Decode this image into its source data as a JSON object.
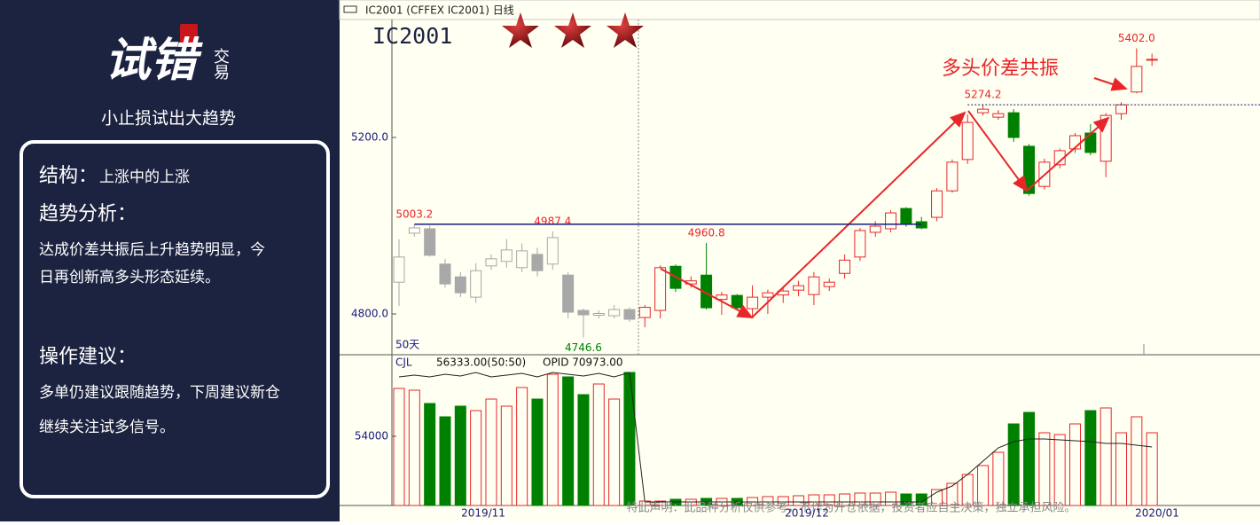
{
  "brand": {
    "name": "试错",
    "sub": "交易",
    "slogan": "小止损试出大趋势"
  },
  "panel": {
    "structure_label": "结构：",
    "structure": "上涨中的上涨",
    "analysis_label": "趋势分析：",
    "analysis": [
      "达成价差共振后上升趋势明显，今",
      "日再创新高多头形态延续。"
    ],
    "advice_label": "操作建议：",
    "advice": [
      "多单仍建议跟随趋势，下周建议新仓",
      "继续关注试多信号。"
    ]
  },
  "chart_data": {
    "type": "candlestick",
    "header": "IC2001  (CFFEX IC2001)  日线",
    "title": "IC2001",
    "period_label": "50天",
    "annotation": "多头价差共振",
    "disclaimer": "特此声明：此品种分析仅供参考，不作为开仓依据，投资者应自主决策，独立承担风险。",
    "ylim": [
      4711.6,
      5467.3
    ],
    "yticks": [
      {
        "value": 5200,
        "label": "5200.0"
      },
      {
        "value": 4800,
        "label": "4800.0"
      }
    ],
    "up_color": "#e8262a",
    "down_color": "#008000",
    "faded_color": "#a8a8a8",
    "line_color": "#1a1a80",
    "past": {
      "ohlc": [
        [
          4872,
          4969,
          4818,
          4929
        ],
        [
          4983,
          5003.2,
          4975,
          4995
        ],
        [
          4993,
          5000,
          4930,
          4933
        ],
        [
          4913,
          4925,
          4860,
          4868
        ],
        [
          4884,
          4895,
          4838,
          4848
        ],
        [
          4838,
          4915,
          4825,
          4898
        ],
        [
          4909,
          4935,
          4900,
          4925
        ],
        [
          4919,
          4970,
          4905,
          4945
        ],
        [
          4905,
          4960,
          4895,
          4943
        ],
        [
          4935,
          4950,
          4885,
          4898
        ],
        [
          4913,
          4987.4,
          4900,
          4973
        ],
        [
          4888,
          4895,
          4790,
          4804
        ],
        [
          4808,
          4812,
          4746.6,
          4798
        ],
        [
          4797,
          4808,
          4790,
          4801
        ],
        [
          4796,
          4820,
          4790,
          4810
        ],
        [
          4810,
          4815,
          4782,
          4788
        ]
      ],
      "volume": [
        59400,
        59200,
        57700,
        56200,
        57400,
        56900,
        58200,
        57400,
        59500,
        58200,
        61000,
        60700,
        58700,
        59900,
        58200,
        61200
      ],
      "volume_ma": [
        60700,
        60900,
        60700,
        61000,
        60800,
        61200,
        60700,
        60900,
        61100,
        60700,
        61200,
        61000,
        60800,
        61100,
        60700,
        61200
      ]
    },
    "recent": {
      "ohlc": [
        [
          4792,
          4820,
          4770,
          4815
        ],
        [
          4808,
          4910,
          4790,
          4905
        ],
        [
          4908,
          4912,
          4850,
          4858
        ],
        [
          4868,
          4885,
          4860,
          4875
        ],
        [
          4888,
          4960.8,
          4810,
          4814
        ],
        [
          4833,
          4850,
          4798,
          4843
        ],
        [
          4842,
          4845,
          4810,
          4814
        ],
        [
          4812,
          4865,
          4790,
          4838
        ],
        [
          4838,
          4855,
          4800,
          4848
        ],
        [
          4843,
          4858,
          4825,
          4852
        ],
        [
          4854,
          4875,
          4840,
          4864
        ],
        [
          4844,
          4895,
          4820,
          4884
        ],
        [
          4862,
          4880,
          4852,
          4872
        ],
        [
          4892,
          4935,
          4880,
          4922
        ],
        [
          4929,
          4995,
          4920,
          4989
        ],
        [
          4985,
          5010,
          4975,
          4999
        ],
        [
          4993,
          5035,
          4985,
          5029
        ],
        [
          5039,
          5042,
          4998,
          5005
        ],
        [
          5009,
          5020,
          4992,
          4995
        ],
        [
          5019,
          5085,
          5010,
          5079
        ],
        [
          5079,
          5150,
          5075,
          5144
        ],
        [
          5150,
          5252,
          5140,
          5234
        ],
        [
          5256,
          5274.2,
          5250,
          5264
        ],
        [
          5246,
          5262,
          5240,
          5254
        ],
        [
          5256,
          5264,
          5190,
          5200
        ],
        [
          5180,
          5185,
          5068,
          5073
        ],
        [
          5089,
          5152,
          5082,
          5144
        ],
        [
          5138,
          5175,
          5130,
          5170
        ],
        [
          5174,
          5210,
          5165,
          5204
        ],
        [
          5210,
          5230,
          5160,
          5166
        ],
        [
          5146,
          5255,
          5110,
          5250
        ],
        [
          5254,
          5280,
          5240,
          5274
        ],
        [
          5303,
          5402,
          5300,
          5361
        ],
        [
          5376,
          5390,
          5362,
          5377
        ]
      ],
      "volume": [
        46700,
        46700,
        46900,
        46900,
        47000,
        47000,
        47000,
        47100,
        47200,
        47200,
        47300,
        47400,
        47400,
        47500,
        47600,
        47600,
        47700,
        47500,
        47500,
        48000,
        48700,
        49700,
        50700,
        52200,
        55400,
        56700,
        54400,
        54200,
        55400,
        56900,
        57200,
        54400,
        56200,
        54400
      ],
      "volume_ma": [
        46600,
        46600,
        46600,
        46600,
        46600,
        46600,
        46600,
        46600,
        46600,
        46600,
        46600,
        46600,
        46600,
        46600,
        46600,
        46600,
        46600,
        46600,
        46600,
        47700,
        48400,
        49700,
        51200,
        52700,
        53400,
        53700,
        53700,
        53600,
        53500,
        53400,
        53200,
        53200,
        53000,
        52800
      ]
    },
    "price_labels": [
      {
        "value": 5003.2,
        "label": "5003.2",
        "color": "#e8262a"
      },
      {
        "value": 4987.4,
        "label": "4987.4",
        "color": "#e8262a"
      },
      {
        "value": 4746.6,
        "label": "4746.6",
        "color": "#008000"
      },
      {
        "value": 4960.8,
        "label": "4960.8",
        "color": "#e8262a"
      },
      {
        "value": 5274.2,
        "label": "5274.2",
        "color": "#e8262a"
      },
      {
        "value": 5402.0,
        "label": "5402.0",
        "color": "#e8262a"
      }
    ],
    "volume_panel": {
      "indicator": "CJL",
      "value_text": "56333.00(50:50)",
      "opid": "OPID 70973.00",
      "ylim": [
        46200,
        63000
      ],
      "yticks": [
        54000
      ],
      "ma_color": "#222222"
    },
    "x_labels": [
      "2019/11",
      "2019/12",
      "2020/01"
    ]
  }
}
